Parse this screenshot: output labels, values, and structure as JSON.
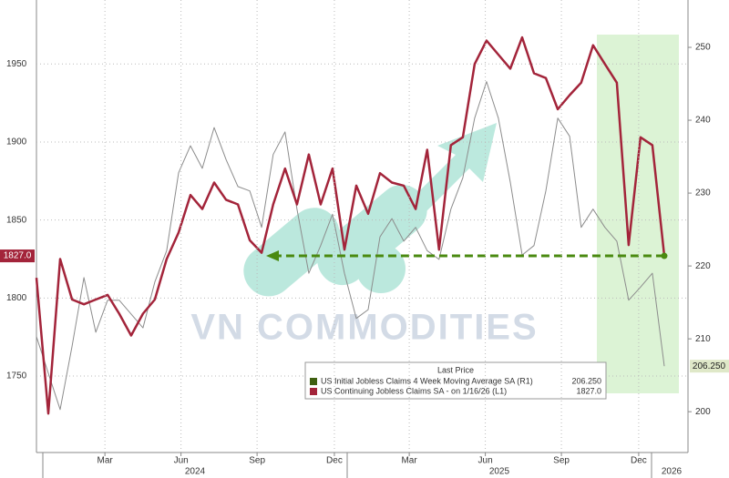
{
  "chart_data": {
    "type": "line",
    "x": [
      2023.979,
      2024.018,
      2024.057,
      2024.096,
      2024.135,
      2024.174,
      2024.213,
      2024.251,
      2024.29,
      2024.329,
      2024.368,
      2024.407,
      2024.446,
      2024.485,
      2024.524,
      2024.563,
      2024.602,
      2024.641,
      2024.68,
      2024.719,
      2024.757,
      2024.796,
      2024.835,
      2024.874,
      2024.913,
      2024.952,
      2024.991,
      2025.03,
      2025.069,
      2025.108,
      2025.147,
      2025.186,
      2025.225,
      2025.263,
      2025.302,
      2025.341,
      2025.38,
      2025.419,
      2025.458,
      2025.497,
      2025.536,
      2025.575,
      2025.614,
      2025.653,
      2025.692,
      2025.731,
      2025.769,
      2025.808,
      2025.847,
      2025.886,
      2025.925,
      2025.964,
      2026.003,
      2026.042
    ],
    "series": [
      {
        "name": "US Initial Jobless Claims 4 Week Moving Average SA  (R1)",
        "axis": "y2",
        "color": "#8c8c8c",
        "legend_color": "#3f5f10",
        "last_label": "206.250",
        "values": [
          210.3,
          205.3,
          200.3,
          209,
          218.4,
          210.9,
          215.3,
          215.3,
          213.4,
          211.5,
          217.8,
          222.1,
          232.8,
          236.5,
          233.4,
          239,
          234.6,
          230.9,
          230.3,
          225.3,
          235.3,
          238.4,
          227.8,
          219,
          222.8,
          227.1,
          219,
          212.8,
          214,
          224,
          226.5,
          223.4,
          225.3,
          222.1,
          220.9,
          227.8,
          232.1,
          240.3,
          245.3,
          240.3,
          231.5,
          221.5,
          222.8,
          230.3,
          240.3,
          237.8,
          225.3,
          227.8,
          225.3,
          223.4,
          215.3,
          217.1,
          219,
          206.25
        ]
      },
      {
        "name": "US Continuing Jobless Claims SA - on 1/16/26  (L1)",
        "axis": "y",
        "color": "#a3243a",
        "legend_color": "#a3243a",
        "last_label": "1827.0",
        "values": [
          1813,
          1726,
          1825,
          1799,
          1796,
          1799,
          1802,
          1790,
          1776,
          1790,
          1799,
          1825,
          1842,
          1866,
          1857,
          1874,
          1863,
          1860,
          1837,
          1829,
          1860,
          1883,
          1860,
          1892,
          1860,
          1883,
          1831,
          1872,
          1854,
          1880,
          1874,
          1872,
          1857,
          1895,
          1831,
          1898,
          1903,
          1950,
          1965,
          1956,
          1947,
          1967,
          1944,
          1941,
          1921,
          1930,
          1938,
          1962,
          1950,
          1938,
          1834,
          1903,
          1898,
          1827
        ]
      }
    ],
    "xlim": [
      2023.979,
      2026.12
    ],
    "xticks": [
      {
        "value": 2024.204,
        "label": "Mar"
      },
      {
        "value": 2024.454,
        "label": "Jun"
      },
      {
        "value": 2024.704,
        "label": "Sep"
      },
      {
        "value": 2024.958,
        "label": "Dec"
      },
      {
        "value": 2025.204,
        "label": "Mar"
      },
      {
        "value": 2025.454,
        "label": "Jun"
      },
      {
        "value": 2025.704,
        "label": "Sep"
      },
      {
        "value": 2025.958,
        "label": "Dec"
      }
    ],
    "year_labels": [
      {
        "value": 2024.5,
        "label": "2024"
      },
      {
        "value": 2025.5,
        "label": "2025"
      },
      {
        "value": 2026.066,
        "label": "2026"
      }
    ],
    "ylim": [
      1701,
      1991
    ],
    "yticks": [
      1750,
      1800,
      1850,
      1900,
      1950
    ],
    "y2lim": [
      194.4,
      256.5
    ],
    "y2ticks": [
      200,
      210,
      220,
      230,
      240,
      250
    ],
    "legend_title": "Last Price",
    "watermark": "VN COMMODITIES",
    "grid": true
  }
}
